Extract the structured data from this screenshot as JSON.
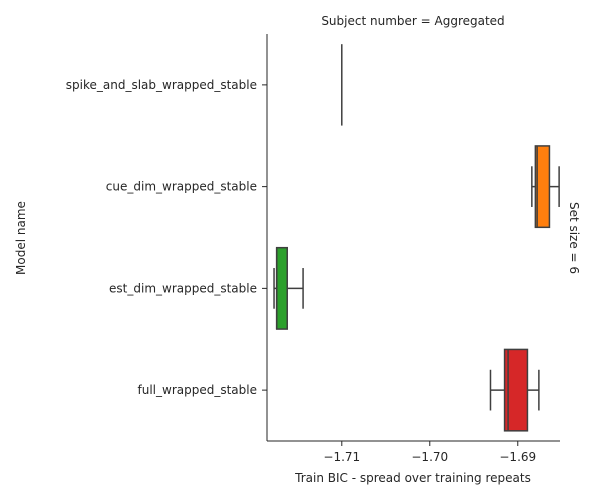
{
  "chart_data": {
    "type": "box",
    "title": "Subject number = Aggregated",
    "row_label": "Set size = 6",
    "xlabel": "Train BIC - spread over training repeats",
    "ylabel": "Model name",
    "xlim": [
      -1.7185,
      -1.6852
    ],
    "xticks": [
      -1.71,
      -1.7,
      -1.69
    ],
    "xtick_labels": [
      "−1.71",
      "−1.70",
      "−1.69"
    ],
    "grid": false,
    "categories": [
      "spike_and_slab_wrapped_stable",
      "cue_dim_wrapped_stable",
      "est_dim_wrapped_stable",
      "full_wrapped_stable"
    ],
    "boxes": [
      {
        "name": "spike_and_slab_wrapped_stable",
        "color": "#1f77b4",
        "whislo": -1.71,
        "q1": -1.71,
        "med": -1.71,
        "q3": -1.71,
        "whishi": -1.71
      },
      {
        "name": "cue_dim_wrapped_stable",
        "color": "#ff7f0e",
        "whislo": -1.6884,
        "q1": -1.688,
        "med": -1.6878,
        "q3": -1.6864,
        "whishi": -1.6853
      },
      {
        "name": "est_dim_wrapped_stable",
        "color": "#2ca02c",
        "whislo": -1.7177,
        "q1": -1.7174,
        "med": -1.7174,
        "q3": -1.7162,
        "whishi": -1.7144
      },
      {
        "name": "full_wrapped_stable",
        "color": "#d62728",
        "whislo": -1.6931,
        "q1": -1.6915,
        "med": -1.6911,
        "q3": -1.6889,
        "whishi": -1.6876
      }
    ]
  }
}
